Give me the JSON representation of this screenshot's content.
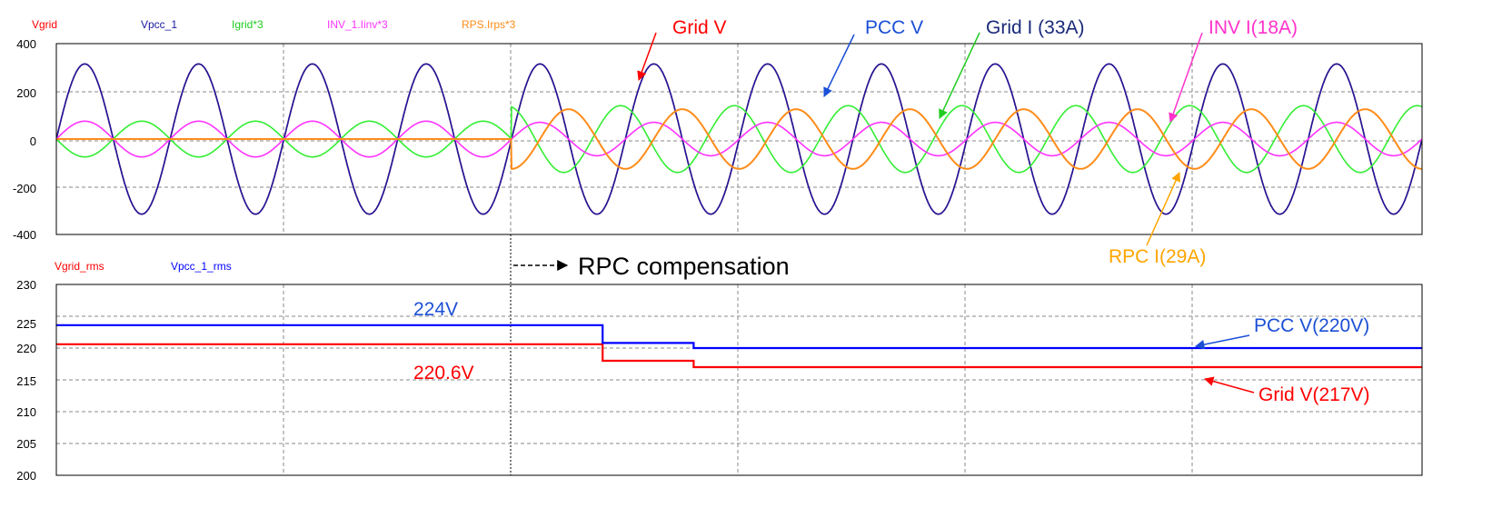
{
  "chart_data": [
    {
      "type": "line",
      "title": "",
      "xlabel": "",
      "ylabel": "",
      "ylim": [
        -400,
        400
      ],
      "yticks": [
        "400",
        "200",
        "0",
        "-200",
        "-400"
      ],
      "legend_position": "top",
      "x": {
        "start": 0,
        "end": 12,
        "unit": "cycles",
        "switch_at": 4
      },
      "series": [
        {
          "name": "Vgrid",
          "color": "#ff0000",
          "amplitude": 315,
          "phase_deg": 0
        },
        {
          "name": "Vpcc_1",
          "color": "#1a1aa0",
          "amplitude": 315,
          "phase_deg": 0
        },
        {
          "name": "Igrid*3",
          "color": "#33ee33",
          "amplitude_before": 75,
          "phase_before_deg": 180,
          "amplitude_after": 140,
          "phase_after_deg": 105
        },
        {
          "name": "INV_1.Iinv*3",
          "color": "#ff33ff",
          "amplitude_before": 75,
          "phase_before_deg": 0,
          "amplitude_after": 70,
          "phase_after_deg": 0
        },
        {
          "name": "RPS.Irps*3",
          "color": "#ff8c1a",
          "amplitude_before": 0,
          "phase_before_deg": 0,
          "amplitude_after": 125,
          "phase_after_deg": -90
        }
      ],
      "annotations": [
        {
          "text": "Grid V",
          "color": "#ff0000"
        },
        {
          "text": "PCC V",
          "color": "#1a4fd6"
        },
        {
          "text": "Grid I (33A)",
          "color": "#1a2a7a"
        },
        {
          "text": "INV I(18A)",
          "color": "#ff33cc"
        },
        {
          "text": "RPC I(29A)",
          "color": "#ffa500"
        }
      ]
    },
    {
      "type": "line",
      "title": "",
      "xlabel": "",
      "ylabel": "",
      "ylim": [
        200,
        230
      ],
      "yticks": [
        "230",
        "225",
        "220",
        "215",
        "210",
        "205",
        "200"
      ],
      "legend_position": "top",
      "series": [
        {
          "name": "Vgrid_rms",
          "color": "#ff0000",
          "steps": [
            [
              0,
              220.6
            ],
            [
              4.8,
              218
            ],
            [
              5.6,
              217
            ],
            [
              12,
              217
            ]
          ]
        },
        {
          "name": "Vpcc_1_rms",
          "color": "#0000ff",
          "steps": [
            [
              0,
              223.6
            ],
            [
              4.8,
              220.8
            ],
            [
              5.6,
              220
            ],
            [
              12,
              220
            ]
          ]
        }
      ],
      "annotations": [
        {
          "text": "224V",
          "color": "#1a4fd6"
        },
        {
          "text": "220.6V",
          "color": "#ff0000"
        },
        {
          "text": "PCC V(220V)",
          "color": "#1a4fd6"
        },
        {
          "text": "Grid V(217V)",
          "color": "#ff0000"
        }
      ]
    }
  ],
  "event_label": "RPC compensation"
}
